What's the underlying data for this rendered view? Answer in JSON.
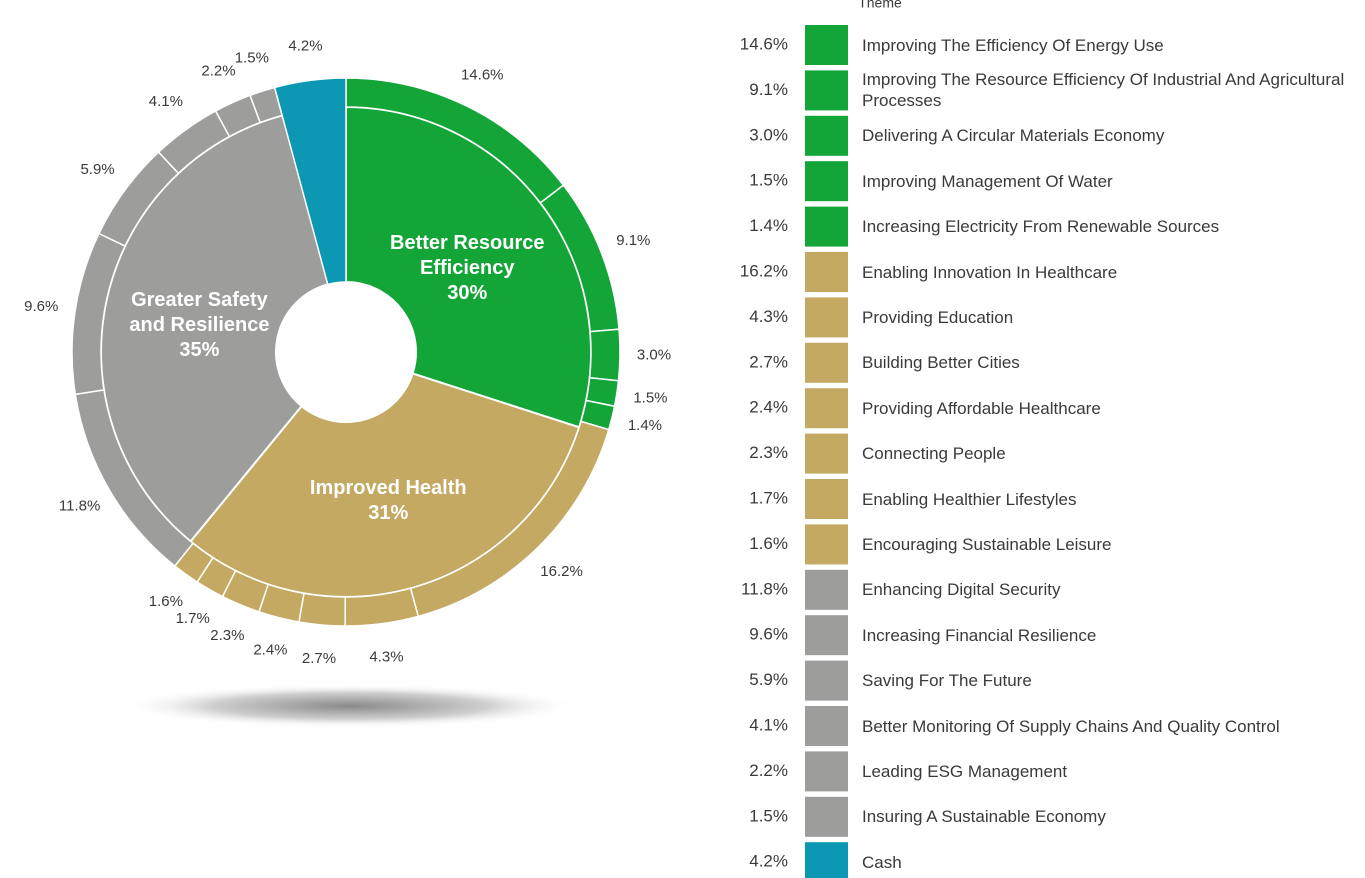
{
  "chart_data": {
    "type": "sunburst",
    "legend_title": "Theme",
    "groups": [
      {
        "name": "Better Resource Efficiency",
        "value": 30,
        "value_label": "30%",
        "color": "#13a538"
      },
      {
        "name": "Improved Health",
        "value": 31,
        "value_label": "31%",
        "color": "#c3a962"
      },
      {
        "name": "Greater Safety and Resilience",
        "value": 35,
        "value_label": "35%",
        "color": "#9d9d9c"
      }
    ],
    "categories": [
      "Improving The Efficiency Of Energy Use",
      "Improving The Resource Efficiency Of Industrial And Agricultural Processes",
      "Delivering A Circular Materials Economy",
      "Improving Management Of Water",
      "Increasing Electricity From Renewable Sources",
      "Enabling Innovation In Healthcare",
      "Providing Education",
      "Building Better Cities",
      "Providing Affordable Healthcare",
      "Connecting People",
      "Enabling Healthier Lifestyles",
      "Encouraging Sustainable Leisure",
      "Enhancing Digital Security",
      "Increasing Financial Resilience",
      "Saving For The Future",
      "Better Monitoring Of Supply Chains And Quality Control",
      "Leading ESG Management",
      "Insuring A Sustainable Economy",
      "Cash"
    ],
    "values": [
      14.6,
      9.1,
      3.0,
      1.5,
      1.4,
      16.2,
      4.3,
      2.7,
      2.4,
      2.3,
      1.7,
      1.6,
      11.8,
      9.6,
      5.9,
      4.1,
      2.2,
      1.5,
      4.2
    ],
    "value_labels": [
      "14.6%",
      "9.1%",
      "3.0%",
      "1.5%",
      "1.4%",
      "16.2%",
      "4.3%",
      "2.7%",
      "2.4%",
      "2.3%",
      "1.7%",
      "1.6%",
      "11.8%",
      "9.6%",
      "5.9%",
      "4.1%",
      "2.2%",
      "1.5%",
      "4.2%"
    ],
    "colors": [
      "#13a538",
      "#13a538",
      "#13a538",
      "#13a538",
      "#13a538",
      "#c3a962",
      "#c3a962",
      "#c3a962",
      "#c3a962",
      "#c3a962",
      "#c3a962",
      "#c3a962",
      "#9d9d9c",
      "#9d9d9c",
      "#9d9d9c",
      "#9d9d9c",
      "#9d9d9c",
      "#9d9d9c",
      "#0c97b3"
    ]
  }
}
